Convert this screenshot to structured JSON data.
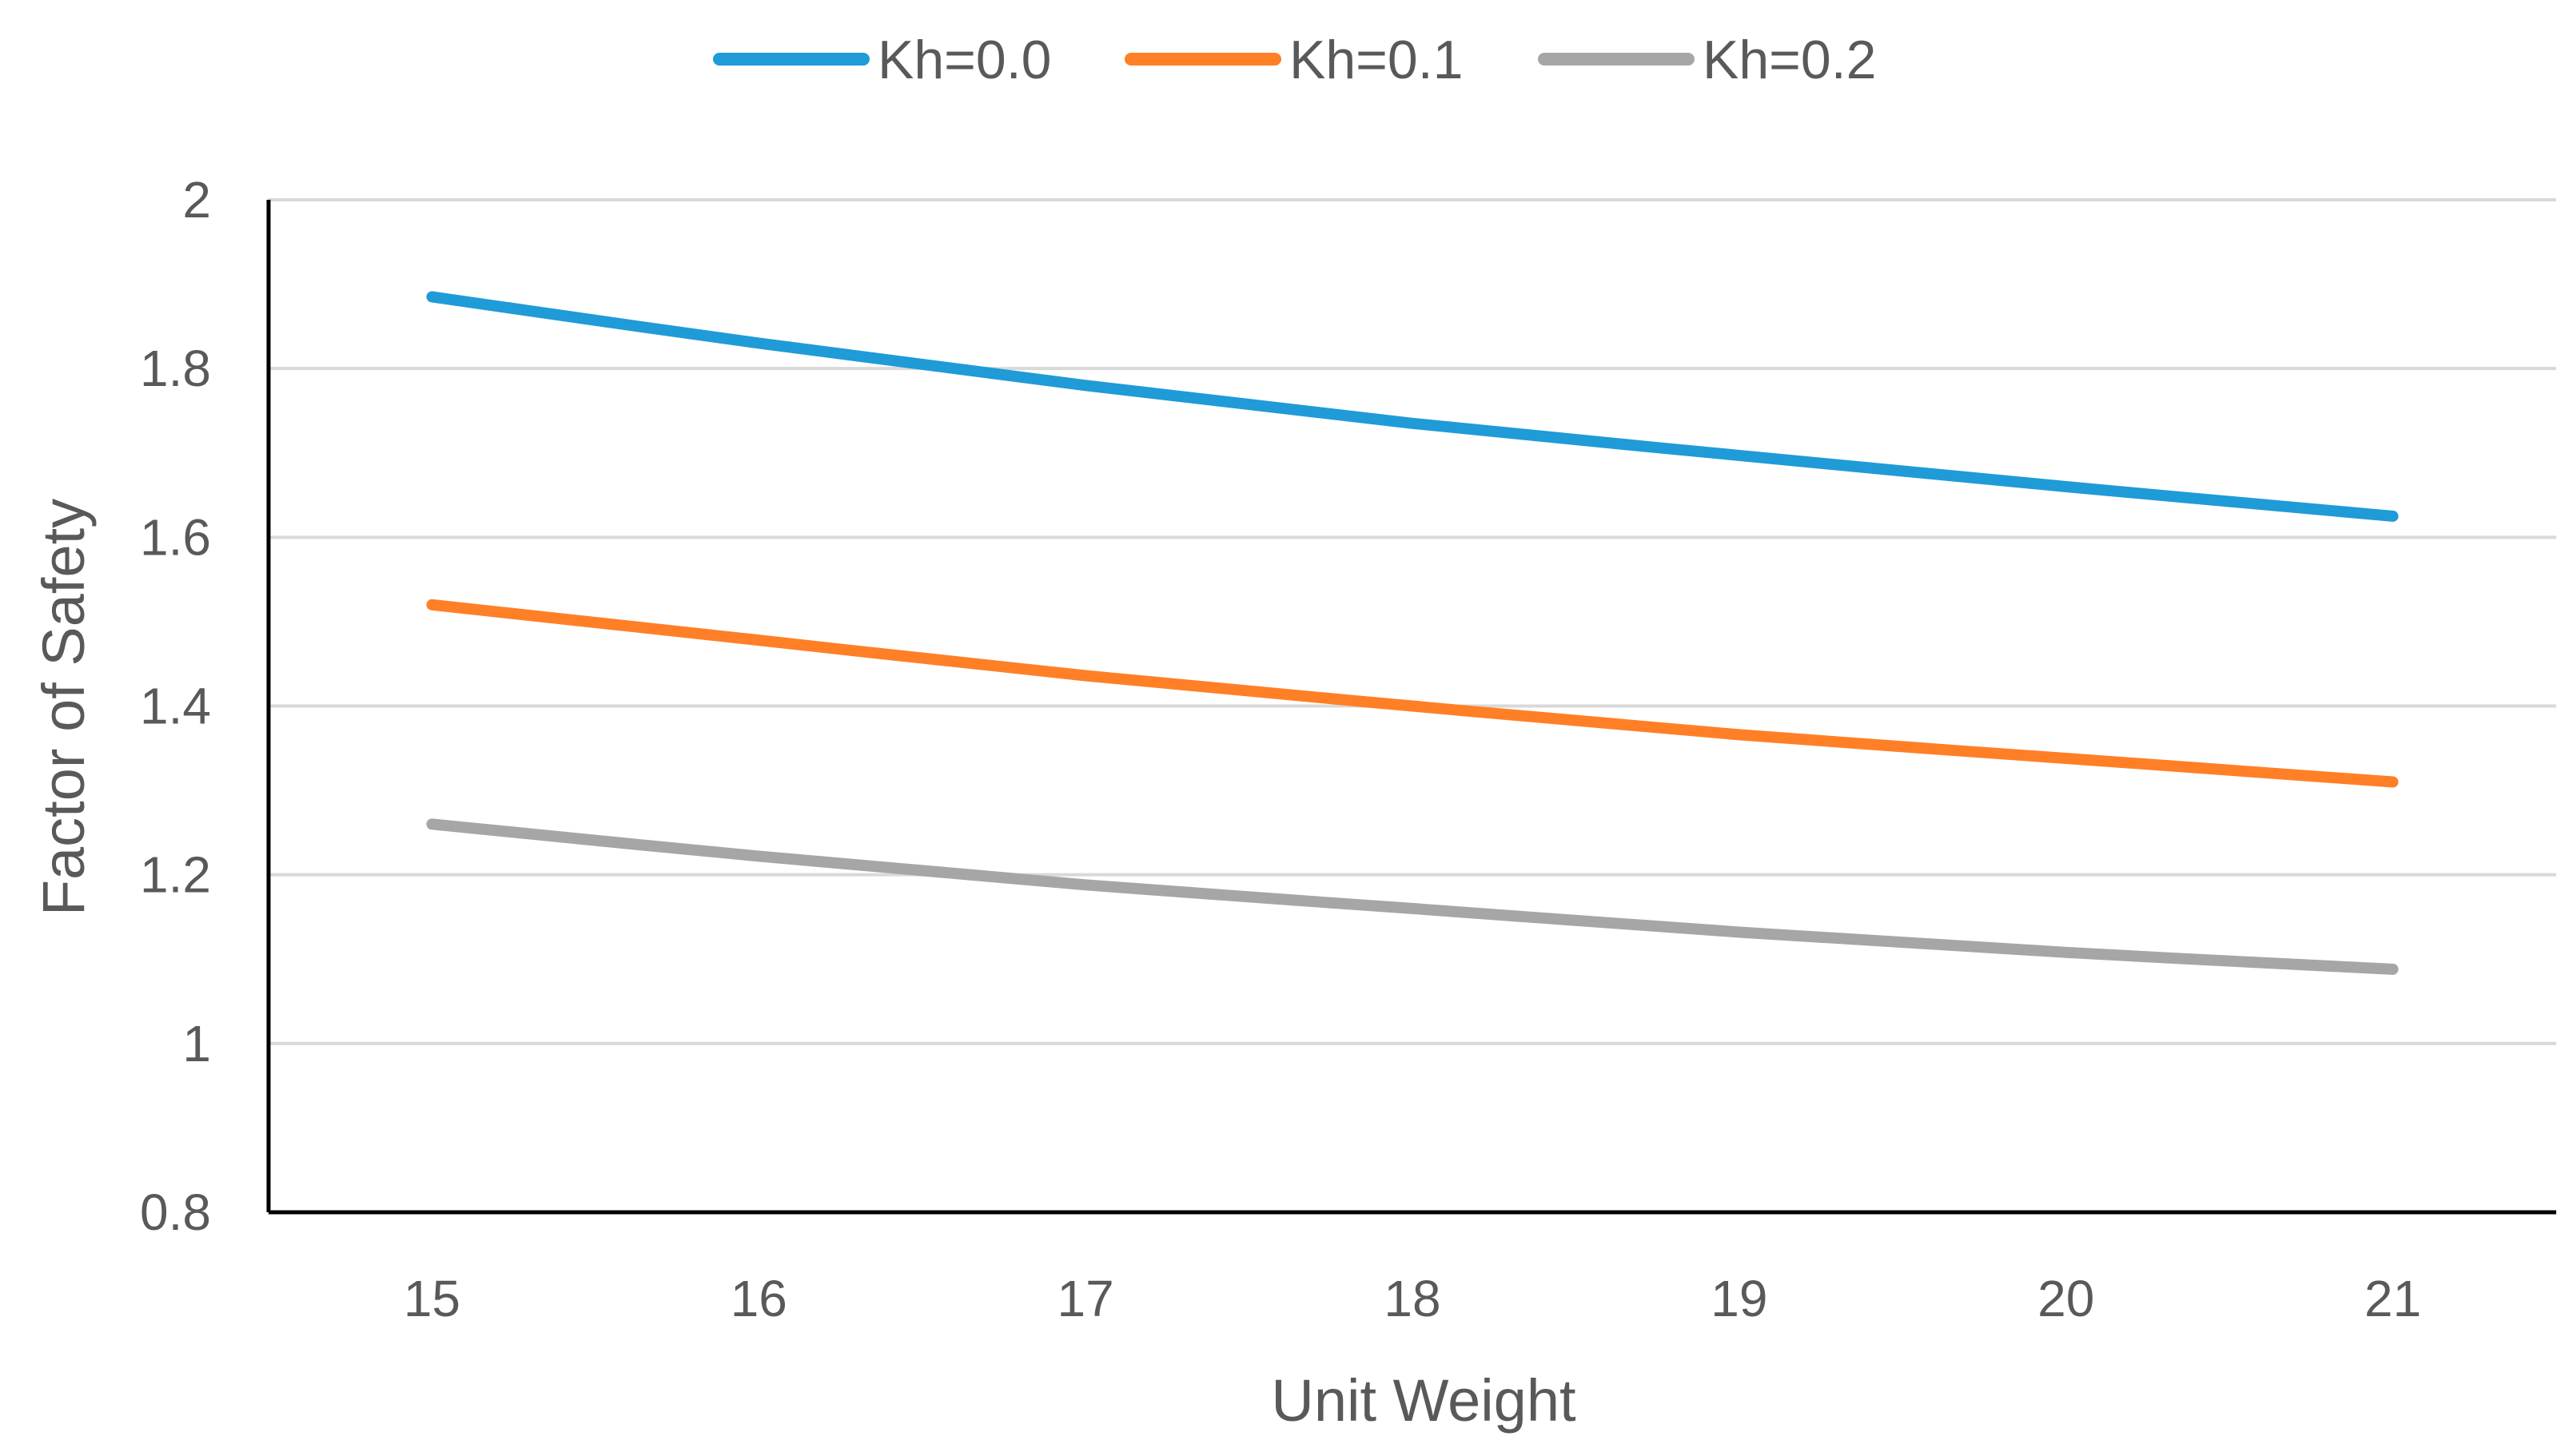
{
  "chart_data": {
    "type": "line",
    "title": "",
    "xlabel": "Unit Weight",
    "ylabel": "Factor of Safety",
    "x": [
      15,
      16,
      17,
      18,
      19,
      20,
      21
    ],
    "xlim": [
      14.5,
      21.5
    ],
    "ylim": [
      0.8,
      2
    ],
    "yticks": [
      0.8,
      1,
      1.2,
      1.4,
      1.6,
      1.8,
      2
    ],
    "ytick_labels": [
      "0.8",
      "1",
      "1.2",
      "1.4",
      "1.6",
      "1.8",
      "2"
    ],
    "xtick_labels": [
      "15",
      "16",
      "17",
      "18",
      "19",
      "20",
      "21"
    ],
    "grid": true,
    "legend_position": "top-center",
    "series": [
      {
        "name": "Kh=0.0",
        "color": "#1f9bd7",
        "values": [
          1.885,
          1.83,
          1.78,
          1.735,
          1.697,
          1.66,
          1.625
        ]
      },
      {
        "name": "Kh=0.1",
        "color": "#ff7f27",
        "values": [
          1.52,
          1.478,
          1.436,
          1.4,
          1.366,
          1.338,
          1.31
        ]
      },
      {
        "name": "Kh=0.2",
        "color": "#a6a6a6",
        "values": [
          1.26,
          1.222,
          1.188,
          1.16,
          1.132,
          1.108,
          1.088
        ]
      }
    ]
  }
}
